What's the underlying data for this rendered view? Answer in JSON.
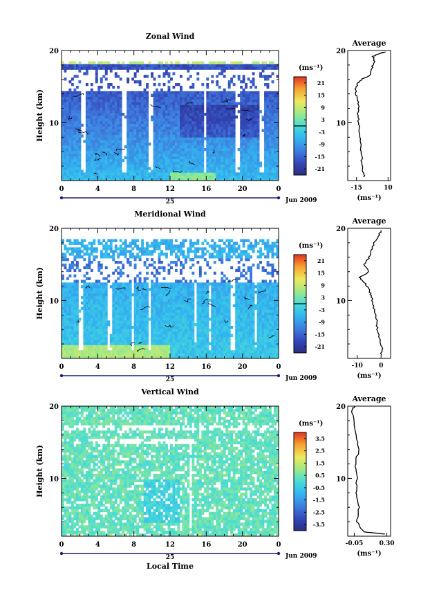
{
  "chart_data": [
    {
      "type": "heatmap",
      "title": "Zonal Wind",
      "ylabel": "Height (km)",
      "yticks": [
        "20",
        "10"
      ],
      "ylim": [
        2,
        20
      ],
      "xticks": [
        "0",
        "4",
        "8",
        "12",
        "16",
        "20",
        "0"
      ],
      "xlim": [
        0,
        24
      ],
      "day_label": "25",
      "date_label": "Jun 2009",
      "colorbar": {
        "unit_label": "(ms⁻¹)",
        "ticks": [
          "21",
          "15",
          "9",
          "3",
          "-3",
          "-9",
          "-15",
          "-21"
        ],
        "range": [
          -24,
          24
        ],
        "zero_line": true
      },
      "profile": {
        "title": "Average",
        "xlabel": "(ms⁻¹)",
        "xticks": [
          "-15",
          "10"
        ],
        "xlim": [
          -22,
          12
        ],
        "yticks": [
          "20",
          "10"
        ],
        "points": [
          [
            -9,
            2.5
          ],
          [
            -10,
            3.5
          ],
          [
            -11,
            5
          ],
          [
            -11.5,
            6.5
          ],
          [
            -12,
            8
          ],
          [
            -13,
            9.5
          ],
          [
            -14,
            11
          ],
          [
            -13,
            12.5
          ],
          [
            -15,
            13.5
          ],
          [
            -16,
            14.5
          ],
          [
            -14,
            15.5
          ],
          [
            -11,
            16
          ],
          [
            -5,
            16.5
          ],
          [
            -3,
            17.5
          ],
          [
            -1,
            18.5
          ],
          [
            -2,
            19.2
          ],
          [
            3,
            19.6
          ],
          [
            8,
            19.8
          ]
        ]
      }
    },
    {
      "type": "heatmap",
      "title": "Meridional Wind",
      "ylabel": "Height (km)",
      "yticks": [
        "20",
        "10"
      ],
      "ylim": [
        2,
        20
      ],
      "xticks": [
        "0",
        "4",
        "8",
        "12",
        "16",
        "20",
        "0"
      ],
      "xlim": [
        0,
        24
      ],
      "day_label": "25",
      "date_label": "Jun 2009",
      "colorbar": {
        "unit_label": "(ms⁻¹)",
        "ticks": [
          "21",
          "15",
          "9",
          "3",
          "-3",
          "-9",
          "-15",
          "-21"
        ],
        "range": [
          -24,
          24
        ],
        "zero_line": true
      },
      "profile": {
        "title": "Average",
        "xlabel": "(ms⁻¹)",
        "xticks": [
          "-10",
          "0"
        ],
        "xlim": [
          -14,
          4
        ],
        "yticks": [
          "20",
          "10"
        ],
        "points": [
          [
            0,
            2.5
          ],
          [
            0.5,
            3.5
          ],
          [
            -0.5,
            4.5
          ],
          [
            -1.5,
            6
          ],
          [
            -2,
            7.5
          ],
          [
            -3,
            9
          ],
          [
            -4,
            10.5
          ],
          [
            -5,
            11.5
          ],
          [
            -7,
            12.5
          ],
          [
            -9,
            13.2
          ],
          [
            -5,
            14
          ],
          [
            -7,
            15
          ],
          [
            -5,
            16
          ],
          [
            -4,
            17
          ],
          [
            -3,
            18
          ],
          [
            -1,
            19
          ],
          [
            0,
            19.7
          ]
        ]
      }
    },
    {
      "type": "heatmap",
      "title": "Vertical Wind",
      "ylabel": "Height (km)",
      "xlabel": "Local Time",
      "yticks": [
        "20",
        "10"
      ],
      "ylim": [
        2,
        20
      ],
      "xticks": [
        "0",
        "4",
        "8",
        "12",
        "16",
        "20",
        "0"
      ],
      "xlim": [
        0,
        24
      ],
      "day_label": "25",
      "date_label": "Jun 2009",
      "colorbar": {
        "unit_label": "(ms⁻¹)",
        "ticks": [
          "3.5",
          "2.5",
          "1.5",
          "0.5",
          "-0.5",
          "-1.5",
          "-2.5",
          "-3.5"
        ],
        "range": [
          -4,
          4
        ],
        "zero_line": false
      },
      "profile": {
        "title": "Average",
        "xlabel": "(ms⁻¹)",
        "xticks": [
          "-0.05",
          "0.30"
        ],
        "xlim": [
          -0.12,
          0.34
        ],
        "yticks": [
          "20",
          "10"
        ],
        "points": [
          [
            0.28,
            2.3
          ],
          [
            0.05,
            2.6
          ],
          [
            -0.02,
            4
          ],
          [
            0,
            6
          ],
          [
            -0.03,
            8
          ],
          [
            -0.02,
            10
          ],
          [
            -0.04,
            12
          ],
          [
            0,
            14
          ],
          [
            -0.03,
            16
          ],
          [
            -0.06,
            18
          ],
          [
            -0.08,
            19.5
          ],
          [
            -0.04,
            20
          ]
        ]
      }
    }
  ]
}
